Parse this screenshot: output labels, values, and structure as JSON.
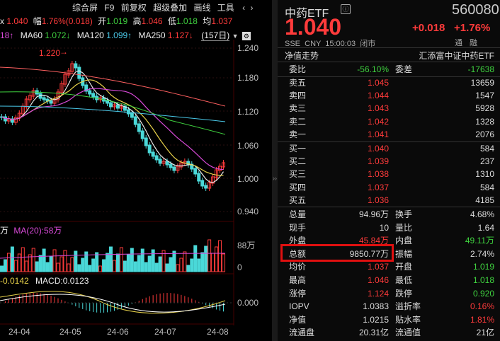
{
  "left": {
    "toolbar": {
      "items": [
        "综合屏",
        "F9",
        "前复权",
        "超级叠加",
        "画线",
        "工具"
      ]
    },
    "quote_row": {
      "price": "1.040",
      "change_label": "幅",
      "change": "1.76%(0.018)",
      "open_label": "开",
      "open": "1.019",
      "high_label": "高",
      "high": "1.046",
      "low_label": "低",
      "low": "1.018",
      "avg_label": "均",
      "avg": "1.037"
    },
    "ma_row": {
      "ma20_tail": "18↑",
      "ma60_label": "MA60",
      "ma60": "1.072↓",
      "ma120_label": "MA120",
      "ma120": "1.099↑",
      "ma250_label": "MA250",
      "ma250": "1.127↓",
      "period": "(157日)"
    },
    "annotation": "1.220",
    "y_ticks": [
      "1.240",
      "1.180",
      "1.120",
      "1.060",
      "1.000",
      "0.940"
    ],
    "vol_header": {
      "tail": "万",
      "ma20_label": "MA(20):",
      "ma20": "58万"
    },
    "vol_ticks": [
      "88万",
      "0"
    ],
    "macd_header": {
      "dif": "-0.0142",
      "macd_label": "MACD:",
      "macd": "0.0123"
    },
    "macd_ticks": [
      "0.000"
    ],
    "x_ticks": [
      "24-04",
      "24-05",
      "24-06",
      "24-07",
      "24-08"
    ]
  },
  "right": {
    "name": "中药ETF",
    "code": "560080",
    "price": "1.040",
    "change": "+0.018",
    "change_pct": "+1.76%",
    "meta": "SSE  CNY  15:00:03  闭市",
    "tong": "通",
    "rong": "融",
    "nav_label": "净值走势",
    "fund_name": "汇添富中证中药ETF",
    "weibi_label": "委比",
    "weibi": "-56.10%",
    "weicha_label": "委差",
    "weicha": "-17638",
    "asks": [
      {
        "label": "卖五",
        "price": "1.045",
        "vol": "13659"
      },
      {
        "label": "卖四",
        "price": "1.044",
        "vol": "1547"
      },
      {
        "label": "卖三",
        "price": "1.043",
        "vol": "5928"
      },
      {
        "label": "卖二",
        "price": "1.042",
        "vol": "1328"
      },
      {
        "label": "卖一",
        "price": "1.041",
        "vol": "2076"
      }
    ],
    "bids": [
      {
        "label": "买一",
        "price": "1.040",
        "vol": "584"
      },
      {
        "label": "买二",
        "price": "1.039",
        "vol": "237"
      },
      {
        "label": "买三",
        "price": "1.038",
        "vol": "1310"
      },
      {
        "label": "买四",
        "price": "1.037",
        "vol": "584"
      },
      {
        "label": "买五",
        "price": "1.036",
        "vol": "4185"
      }
    ],
    "stats": [
      {
        "l1": "总量",
        "v1": "94.96万",
        "c1": "white",
        "l2": "换手",
        "v2": "4.68%",
        "c2": "white"
      },
      {
        "l1": "现手",
        "v1": "10",
        "c1": "white",
        "l2": "量比",
        "v2": "1.64",
        "c2": "white"
      },
      {
        "l1": "外盘",
        "v1": "45.84万",
        "c1": "red",
        "l2": "内盘",
        "v2": "49.11万",
        "c2": "green"
      },
      {
        "l1": "总额",
        "v1": "9850.77万",
        "c1": "white",
        "l2": "振幅",
        "v2": "2.74%",
        "c2": "white"
      },
      {
        "l1": "均价",
        "v1": "1.037",
        "c1": "red",
        "l2": "开盘",
        "v2": "1.019",
        "c2": "green"
      },
      {
        "l1": "最高",
        "v1": "1.046",
        "c1": "red",
        "l2": "最低",
        "v2": "1.018",
        "c2": "green"
      },
      {
        "l1": "涨停",
        "v1": "1.124",
        "c1": "red",
        "l2": "跌停",
        "v2": "0.920",
        "c2": "green"
      },
      {
        "l1": "IOPV",
        "v1": "1.0383",
        "c1": "white",
        "l2": "溢折率",
        "v2": "0.16%",
        "c2": "red"
      },
      {
        "l1": "净值",
        "v1": "1.0215",
        "c1": "white",
        "l2": "贴水率",
        "v2": "1.81%",
        "c2": "red"
      },
      {
        "l1": "流通盘",
        "v1": "20.31亿",
        "c1": "white",
        "l2": "流通值",
        "v2": "21亿",
        "c2": "white"
      }
    ]
  }
}
